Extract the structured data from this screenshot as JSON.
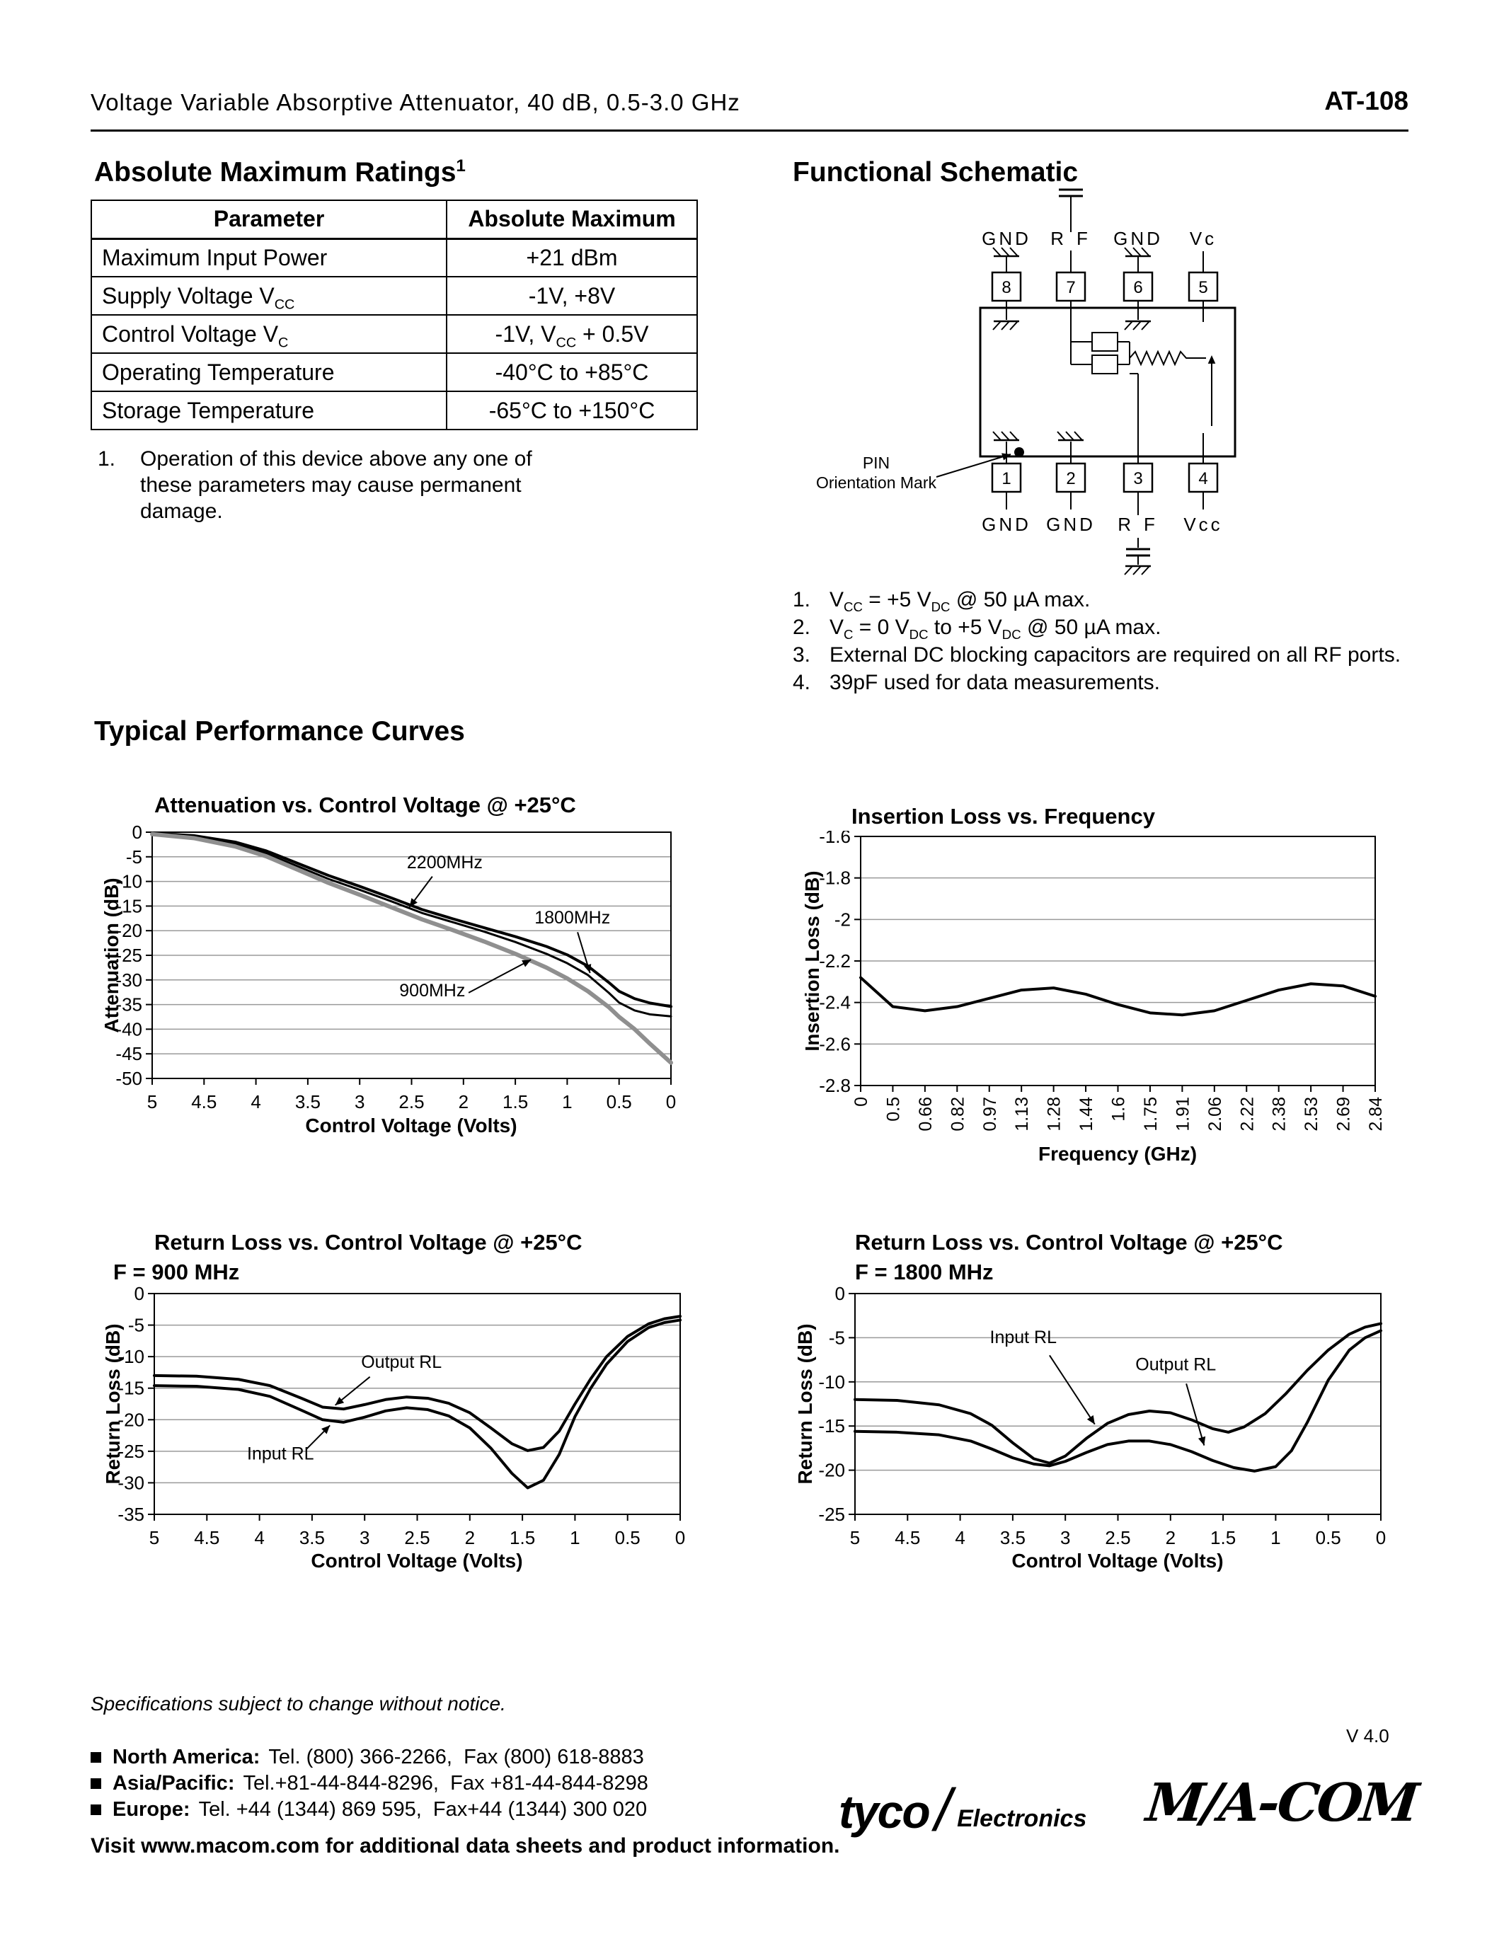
{
  "header": {
    "title": "Voltage Variable Absorptive Attenuator, 40 dB, 0.5-3.0 GHz",
    "part_number": "AT-108"
  },
  "abs_max": {
    "heading": "Absolute Maximum Ratings^1^",
    "col_headers": [
      "Parameter",
      "Absolute Maximum"
    ],
    "rows": [
      [
        "Maximum Input Power",
        "+21 dBm"
      ],
      [
        "Supply Voltage V~CC~",
        "-1V, +8V"
      ],
      [
        "Control Voltage V~C~",
        "-1V, V~CC~ + 0.5V"
      ],
      [
        "Operating Temperature",
        "-40°C to +85°C"
      ],
      [
        "Storage Temperature",
        "-65°C to +150°C"
      ]
    ],
    "footnote_num": "1.",
    "footnote": "Operation of this device above any one of these parameters may cause permanent damage."
  },
  "schematic": {
    "heading": "Functional Schematic",
    "top_pins": [
      {
        "label": "GND",
        "num": "8"
      },
      {
        "label": "RF",
        "num": "7"
      },
      {
        "label": "GND",
        "num": "6"
      },
      {
        "label": "Vc",
        "num": "5"
      }
    ],
    "bottom_pins": [
      {
        "label": "GND",
        "num": "1"
      },
      {
        "label": "GND",
        "num": "2"
      },
      {
        "label": "RF",
        "num": "3"
      },
      {
        "label": "Vcc",
        "num": "4"
      }
    ],
    "pin_mark_lines": [
      "PIN",
      "Orientation Mark"
    ],
    "notes": [
      {
        "num": "1.",
        "text": "V~CC~ = +5 V~DC~ @ 50 µA max."
      },
      {
        "num": "2.",
        "text": "V~C~ = 0 V~DC~ to +5 V~DC~ @ 50 µA max."
      },
      {
        "num": "3.",
        "text": "External DC blocking capacitors are required on all RF ports."
      },
      {
        "num": "4.",
        "text": "39pF used for data measurements."
      }
    ]
  },
  "curves_heading": "Typical Performance Curves",
  "chart_data": [
    {
      "type": "line",
      "title": "Attenuation vs. Control Voltage @ +25°C",
      "xlabel": "Control Voltage (Volts)",
      "ylabel": "Attenuation (dB)",
      "x_range": [
        5,
        0
      ],
      "y_range": [
        0,
        -50
      ],
      "x_ticks": [
        5,
        4.5,
        4,
        3.5,
        3,
        2.5,
        2,
        1.5,
        1,
        0.5,
        0
      ],
      "y_ticks": [
        0,
        -5,
        -10,
        -15,
        -20,
        -25,
        -30,
        -35,
        -40,
        -45,
        -50
      ],
      "grid": "horizontal",
      "series": [
        {
          "name": "2200MHz",
          "color": "#000000",
          "width": 4,
          "points": [
            [
              5,
              -0.2
            ],
            [
              4.6,
              -0.7
            ],
            [
              4.2,
              -2
            ],
            [
              3.9,
              -3.8
            ],
            [
              3.6,
              -6.3
            ],
            [
              3.3,
              -8.8
            ],
            [
              3,
              -11
            ],
            [
              2.7,
              -13.3
            ],
            [
              2.4,
              -15.7
            ],
            [
              2.1,
              -17.6
            ],
            [
              1.8,
              -19.4
            ],
            [
              1.5,
              -21.2
            ],
            [
              1.2,
              -23.2
            ],
            [
              1,
              -24.9
            ],
            [
              0.8,
              -27.2
            ],
            [
              0.6,
              -30.5
            ],
            [
              0.5,
              -32.3
            ],
            [
              0.35,
              -33.8
            ],
            [
              0.2,
              -34.7
            ],
            [
              0,
              -35.4
            ]
          ]
        },
        {
          "name": "1800MHz",
          "color": "#000000",
          "width": 3,
          "points": [
            [
              5,
              -0.3
            ],
            [
              4.6,
              -0.9
            ],
            [
              4.2,
              -2.4
            ],
            [
              3.9,
              -4.3
            ],
            [
              3.6,
              -6.9
            ],
            [
              3.3,
              -9.5
            ],
            [
              3,
              -11.7
            ],
            [
              2.7,
              -14
            ],
            [
              2.4,
              -16.4
            ],
            [
              2.1,
              -18.3
            ],
            [
              1.8,
              -20.2
            ],
            [
              1.5,
              -22.3
            ],
            [
              1.2,
              -24.7
            ],
            [
              1,
              -26.6
            ],
            [
              0.8,
              -29
            ],
            [
              0.6,
              -32.6
            ],
            [
              0.5,
              -34.6
            ],
            [
              0.35,
              -36.2
            ],
            [
              0.2,
              -37
            ],
            [
              0,
              -37.4
            ]
          ]
        },
        {
          "name": "900MHz",
          "color": "#8f8f8f",
          "width": 6,
          "points": [
            [
              5,
              -0.4
            ],
            [
              4.6,
              -1.2
            ],
            [
              4.2,
              -2.9
            ],
            [
              3.9,
              -4.9
            ],
            [
              3.6,
              -7.6
            ],
            [
              3.3,
              -10.3
            ],
            [
              3,
              -12.7
            ],
            [
              2.7,
              -15.2
            ],
            [
              2.4,
              -17.7
            ],
            [
              2.1,
              -19.9
            ],
            [
              1.8,
              -22.2
            ],
            [
              1.5,
              -24.7
            ],
            [
              1.2,
              -27.5
            ],
            [
              1,
              -29.7
            ],
            [
              0.8,
              -32.3
            ],
            [
              0.6,
              -35.5
            ],
            [
              0.5,
              -37.5
            ],
            [
              0.35,
              -40
            ],
            [
              0.2,
              -43
            ],
            [
              0,
              -46.8
            ]
          ]
        }
      ],
      "annotations": [
        {
          "text": "2200MHz",
          "tx": 2.18,
          "ty": -7.3,
          "sx": 2.3,
          "sy": -9,
          "ax": 2.52,
          "ay": -15.2
        },
        {
          "text": "1800MHz",
          "tx": 0.95,
          "ty": -18.5,
          "sx": 0.9,
          "sy": -20.3,
          "ax": 0.78,
          "ay": -28.6
        },
        {
          "text": "900MHz",
          "tx": 2.3,
          "ty": -33.3,
          "sx": 1.95,
          "sy": -32.6,
          "ax": 1.35,
          "ay": -25.9
        }
      ]
    },
    {
      "type": "line",
      "title": "Insertion Loss vs. Frequency",
      "xlabel": "Frequency (GHz)",
      "ylabel": "Insertion Loss (dB)",
      "y_range": [
        -1.6,
        -2.8
      ],
      "y_ticks": [
        -1.6,
        -1.8,
        -2,
        -2.2,
        -2.4,
        -2.6,
        -2.8
      ],
      "grid": "horizontal",
      "categories": [
        "0",
        "0.5",
        "0.66",
        "0.82",
        "0.97",
        "1.13",
        "1.28",
        "1.44",
        "1.6",
        "1.75",
        "1.91",
        "2.06",
        "2.22",
        "2.38",
        "2.53",
        "2.69",
        "2.84"
      ],
      "series": [
        {
          "name": "Insertion Loss",
          "color": "#000000",
          "width": 4,
          "values": [
            -2.28,
            -2.42,
            -2.44,
            -2.42,
            -2.38,
            -2.34,
            -2.33,
            -2.36,
            -2.41,
            -2.45,
            -2.46,
            -2.44,
            -2.39,
            -2.34,
            -2.31,
            -2.32,
            -2.37
          ]
        }
      ],
      "annotations": []
    },
    {
      "type": "line",
      "title": "Return Loss vs. Control Voltage @ +25°C",
      "subtitle": "F = 900 MHz",
      "xlabel": "Control Voltage (Volts)",
      "ylabel": "Return Loss (dB)",
      "x_range": [
        5,
        0
      ],
      "y_range": [
        0,
        -35
      ],
      "x_ticks": [
        5,
        4.5,
        4,
        3.5,
        3,
        2.5,
        2,
        1.5,
        1,
        0.5,
        0
      ],
      "y_ticks": [
        0,
        -5,
        -10,
        -15,
        -20,
        -25,
        -30,
        -35
      ],
      "grid": "horizontal",
      "series": [
        {
          "name": "Output RL",
          "color": "#000000",
          "width": 4,
          "points": [
            [
              5,
              -13
            ],
            [
              4.6,
              -13.1
            ],
            [
              4.2,
              -13.6
            ],
            [
              3.9,
              -14.6
            ],
            [
              3.6,
              -16.6
            ],
            [
              3.4,
              -18
            ],
            [
              3.2,
              -18.3
            ],
            [
              3,
              -17.6
            ],
            [
              2.8,
              -16.8
            ],
            [
              2.6,
              -16.4
            ],
            [
              2.4,
              -16.6
            ],
            [
              2.2,
              -17.4
            ],
            [
              2,
              -18.9
            ],
            [
              1.8,
              -21.3
            ],
            [
              1.6,
              -23.8
            ],
            [
              1.45,
              -24.9
            ],
            [
              1.3,
              -24.4
            ],
            [
              1.15,
              -21.8
            ],
            [
              1,
              -17.5
            ],
            [
              0.85,
              -13.5
            ],
            [
              0.7,
              -10
            ],
            [
              0.5,
              -6.8
            ],
            [
              0.3,
              -4.8
            ],
            [
              0.15,
              -4
            ],
            [
              0,
              -3.6
            ]
          ]
        },
        {
          "name": "Input RL",
          "color": "#000000",
          "width": 4,
          "points": [
            [
              5,
              -14.6
            ],
            [
              4.6,
              -14.7
            ],
            [
              4.2,
              -15.2
            ],
            [
              3.9,
              -16.3
            ],
            [
              3.6,
              -18.5
            ],
            [
              3.4,
              -20
            ],
            [
              3.2,
              -20.4
            ],
            [
              3,
              -19.6
            ],
            [
              2.8,
              -18.6
            ],
            [
              2.6,
              -18.1
            ],
            [
              2.4,
              -18.4
            ],
            [
              2.2,
              -19.4
            ],
            [
              2,
              -21.3
            ],
            [
              1.8,
              -24.5
            ],
            [
              1.6,
              -28.5
            ],
            [
              1.45,
              -30.8
            ],
            [
              1.3,
              -29.6
            ],
            [
              1.15,
              -25.5
            ],
            [
              1,
              -19.5
            ],
            [
              0.85,
              -15
            ],
            [
              0.7,
              -11.2
            ],
            [
              0.5,
              -7.6
            ],
            [
              0.3,
              -5.4
            ],
            [
              0.15,
              -4.6
            ],
            [
              0,
              -4.2
            ]
          ]
        }
      ],
      "annotations": [
        {
          "text": "Output RL",
          "tx": 2.65,
          "ty": -11.8,
          "sx": 2.95,
          "sy": -13.2,
          "ax": 3.28,
          "ay": -17.7
        },
        {
          "text": "Input RL",
          "tx": 3.8,
          "ty": -26.3,
          "sx": 3.55,
          "sy": -24.6,
          "ax": 3.33,
          "ay": -20.9
        }
      ]
    },
    {
      "type": "line",
      "title": "Return Loss vs. Control Voltage @ +25°C",
      "subtitle": "F = 1800 MHz",
      "xlabel": "Control Voltage (Volts)",
      "ylabel": "Return Loss (dB)",
      "x_range": [
        5,
        0
      ],
      "y_range": [
        0,
        -25
      ],
      "x_ticks": [
        5,
        4.5,
        4,
        3.5,
        3,
        2.5,
        2,
        1.5,
        1,
        0.5,
        0
      ],
      "y_ticks": [
        0,
        -5,
        -10,
        -15,
        -20,
        -25
      ],
      "grid": "horizontal",
      "series": [
        {
          "name": "Input RL",
          "color": "#000000",
          "width": 4,
          "points": [
            [
              5,
              -12
            ],
            [
              4.6,
              -12.1
            ],
            [
              4.2,
              -12.6
            ],
            [
              3.9,
              -13.6
            ],
            [
              3.7,
              -14.9
            ],
            [
              3.5,
              -16.9
            ],
            [
              3.3,
              -18.7
            ],
            [
              3.15,
              -19.2
            ],
            [
              3,
              -18.4
            ],
            [
              2.8,
              -16.4
            ],
            [
              2.6,
              -14.7
            ],
            [
              2.4,
              -13.7
            ],
            [
              2.2,
              -13.3
            ],
            [
              2,
              -13.5
            ],
            [
              1.8,
              -14.3
            ],
            [
              1.6,
              -15.3
            ],
            [
              1.45,
              -15.7
            ],
            [
              1.3,
              -15.1
            ],
            [
              1.1,
              -13.6
            ],
            [
              0.9,
              -11.3
            ],
            [
              0.7,
              -8.7
            ],
            [
              0.5,
              -6.4
            ],
            [
              0.3,
              -4.6
            ],
            [
              0.15,
              -3.8
            ],
            [
              0,
              -3.4
            ]
          ]
        },
        {
          "name": "Output RL",
          "color": "#000000",
          "width": 4,
          "points": [
            [
              5,
              -15.6
            ],
            [
              4.6,
              -15.7
            ],
            [
              4.2,
              -16
            ],
            [
              3.9,
              -16.7
            ],
            [
              3.7,
              -17.6
            ],
            [
              3.5,
              -18.6
            ],
            [
              3.3,
              -19.3
            ],
            [
              3.15,
              -19.5
            ],
            [
              3,
              -19
            ],
            [
              2.8,
              -18
            ],
            [
              2.6,
              -17.1
            ],
            [
              2.4,
              -16.7
            ],
            [
              2.2,
              -16.7
            ],
            [
              2,
              -17.1
            ],
            [
              1.8,
              -17.9
            ],
            [
              1.6,
              -18.9
            ],
            [
              1.4,
              -19.7
            ],
            [
              1.2,
              -20.1
            ],
            [
              1,
              -19.6
            ],
            [
              0.85,
              -17.8
            ],
            [
              0.7,
              -14.6
            ],
            [
              0.5,
              -9.8
            ],
            [
              0.3,
              -6.4
            ],
            [
              0.15,
              -5
            ],
            [
              0,
              -4.2
            ]
          ]
        }
      ],
      "annotations": [
        {
          "text": "Input RL",
          "tx": 3.4,
          "ty": -5.6,
          "sx": 3.15,
          "sy": -7,
          "ax": 2.72,
          "ay": -14.8
        },
        {
          "text": "Output RL",
          "tx": 1.95,
          "ty": -8.7,
          "sx": 1.85,
          "sy": -10.2,
          "ax": 1.68,
          "ay": -17.2
        }
      ]
    }
  ],
  "footer": {
    "notice": "Specifications subject to change without notice.",
    "version": "V 4.0",
    "contacts": [
      {
        "region": "North America:",
        "info": "Tel. (800) 366-2266,  Fax (800) 618-8883"
      },
      {
        "region": "Asia/Pacific:",
        "info": "Tel.+81-44-844-8296,  Fax +81-44-844-8298"
      },
      {
        "region": "Europe:",
        "info": "Tel. +44 (1344) 869 595,  Fax+44 (1344) 300 020"
      }
    ],
    "website_line": "Visit www.macom.com for additional data sheets and product information.",
    "logos": {
      "tyco": "tyco",
      "tyco_slash": "/",
      "tyco_sub": "Electronics",
      "macom": "M/A-COM"
    }
  }
}
